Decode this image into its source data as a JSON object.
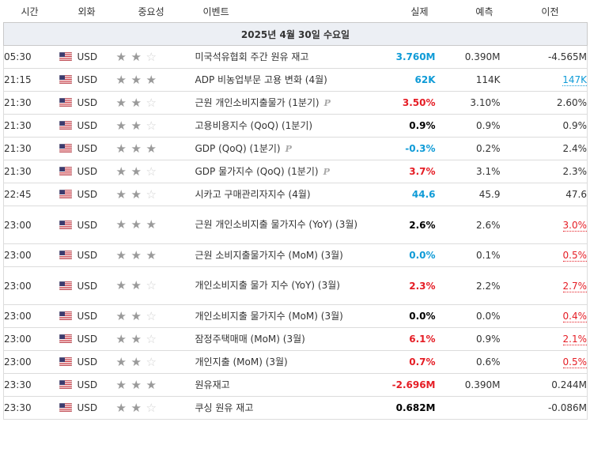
{
  "headers": {
    "time": "시간",
    "currency": "외화",
    "importance": "중요성",
    "event": "이벤트",
    "actual": "실제",
    "forecast": "예측",
    "previous": "이전"
  },
  "date_label": "2025년 4월 30일 수요일",
  "colors": {
    "positive": "#0f9bd7",
    "negative": "#e51d25",
    "header_bg": "#eceff4"
  },
  "rows": [
    {
      "time": "05:30",
      "currency": "USD",
      "stars": 2,
      "event": "미국석유협회 주간 원유 재고",
      "preliminary": false,
      "actual": "3.760M",
      "actual_color": "positive",
      "forecast": "0.390M",
      "previous": "-4.565M",
      "previous_revised": ""
    },
    {
      "time": "21:15",
      "currency": "USD",
      "stars": 3,
      "event": "ADP 비농업부문 고용 변화 (4월)",
      "preliminary": false,
      "actual": "62K",
      "actual_color": "positive",
      "forecast": "114K",
      "previous": "147K",
      "previous_revised": "up"
    },
    {
      "time": "21:30",
      "currency": "USD",
      "stars": 2,
      "event": "근원 개인소비지출물가 (1분기)",
      "preliminary": true,
      "actual": "3.50%",
      "actual_color": "negative",
      "forecast": "3.10%",
      "previous": "2.60%",
      "previous_revised": ""
    },
    {
      "time": "21:30",
      "currency": "USD",
      "stars": 2,
      "event": "고용비용지수 (QoQ) (1분기)",
      "preliminary": false,
      "actual": "0.9%",
      "actual_color": "neutral",
      "forecast": "0.9%",
      "previous": "0.9%",
      "previous_revised": ""
    },
    {
      "time": "21:30",
      "currency": "USD",
      "stars": 3,
      "event": "GDP (QoQ) (1분기)",
      "preliminary": true,
      "actual": "-0.3%",
      "actual_color": "positive",
      "forecast": "0.2%",
      "previous": "2.4%",
      "previous_revised": ""
    },
    {
      "time": "21:30",
      "currency": "USD",
      "stars": 2,
      "event": "GDP 물가지수 (QoQ) (1분기)",
      "preliminary": true,
      "actual": "3.7%",
      "actual_color": "negative",
      "forecast": "3.1%",
      "previous": "2.3%",
      "previous_revised": ""
    },
    {
      "time": "22:45",
      "currency": "USD",
      "stars": 2,
      "event": "시카고 구매관리자지수 (4월)",
      "preliminary": false,
      "actual": "44.6",
      "actual_color": "positive",
      "forecast": "45.9",
      "previous": "47.6",
      "previous_revised": ""
    },
    {
      "time": "23:00",
      "currency": "USD",
      "stars": 3,
      "event": "근원 개인소비지출 물가지수 (YoY) (3월)",
      "preliminary": false,
      "actual": "2.6%",
      "actual_color": "neutral",
      "forecast": "2.6%",
      "previous": "3.0%",
      "previous_revised": "down"
    },
    {
      "time": "23:00",
      "currency": "USD",
      "stars": 3,
      "event": "근원 소비지출물가지수 (MoM) (3월)",
      "preliminary": false,
      "actual": "0.0%",
      "actual_color": "positive",
      "forecast": "0.1%",
      "previous": "0.5%",
      "previous_revised": "down"
    },
    {
      "time": "23:00",
      "currency": "USD",
      "stars": 2,
      "event": "개인소비지출 물가 지수 (YoY) (3월)",
      "preliminary": false,
      "actual": "2.3%",
      "actual_color": "negative",
      "forecast": "2.2%",
      "previous": "2.7%",
      "previous_revised": "down"
    },
    {
      "time": "23:00",
      "currency": "USD",
      "stars": 2,
      "event": "개인소비지출 물가지수 (MoM) (3월)",
      "preliminary": false,
      "actual": "0.0%",
      "actual_color": "neutral",
      "forecast": "0.0%",
      "previous": "0.4%",
      "previous_revised": "down"
    },
    {
      "time": "23:00",
      "currency": "USD",
      "stars": 2,
      "event": "잠정주택매매 (MoM) (3월)",
      "preliminary": false,
      "actual": "6.1%",
      "actual_color": "negative",
      "forecast": "0.9%",
      "previous": "2.1%",
      "previous_revised": "down"
    },
    {
      "time": "23:00",
      "currency": "USD",
      "stars": 2,
      "event": "개인지출 (MoM) (3월)",
      "preliminary": false,
      "actual": "0.7%",
      "actual_color": "negative",
      "forecast": "0.6%",
      "previous": "0.5%",
      "previous_revised": "down"
    },
    {
      "time": "23:30",
      "currency": "USD",
      "stars": 3,
      "event": "원유재고",
      "preliminary": false,
      "actual": "-2.696M",
      "actual_color": "negative",
      "forecast": "0.390M",
      "previous": "0.244M",
      "previous_revised": ""
    },
    {
      "time": "23:30",
      "currency": "USD",
      "stars": 2,
      "event": "쿠싱 원유 재고",
      "preliminary": false,
      "actual": "0.682M",
      "actual_color": "neutral",
      "forecast": "",
      "previous": "-0.086M",
      "previous_revised": ""
    }
  ]
}
